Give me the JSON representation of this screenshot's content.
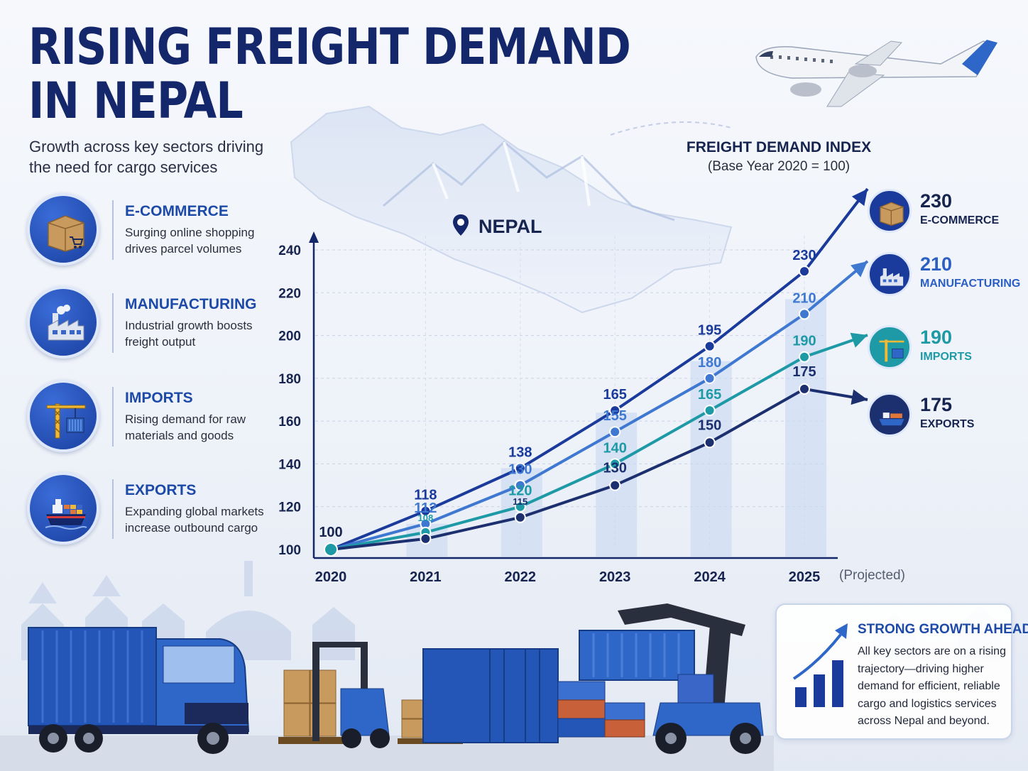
{
  "header": {
    "title_line1": "RISING FREIGHT DEMAND",
    "title_line2": "IN NEPAL",
    "subtitle": "Growth across key sectors driving the need for cargo services"
  },
  "sectors": [
    {
      "name": "E-COMMERCE",
      "description": "Surging online shopping drives parcel volumes",
      "icon": "parcel-box-icon"
    },
    {
      "name": "MANUFACTURING",
      "description": "Industrial growth boosts freight output",
      "icon": "factory-icon"
    },
    {
      "name": "IMPORTS",
      "description": "Rising demand for raw materials and goods",
      "icon": "crane-container-icon"
    },
    {
      "name": "EXPORTS",
      "description": "Expanding global markets increase outbound cargo",
      "icon": "cargo-ship-icon"
    }
  ],
  "map": {
    "label": "NEPAL",
    "icon": "location-pin-icon"
  },
  "chart_data": {
    "type": "line",
    "title": "FREIGHT DEMAND INDEX",
    "subtitle": "(Base Year 2020 = 100)",
    "x": [
      "2020",
      "2021",
      "2022",
      "2023",
      "2024",
      "2025"
    ],
    "x_note": "(Projected)",
    "ylim": [
      100,
      240
    ],
    "yticks": [
      100,
      120,
      140,
      160,
      180,
      200,
      220,
      240
    ],
    "grid": true,
    "series": [
      {
        "name": "E-COMMERCE",
        "values": [
          100,
          118,
          138,
          165,
          195,
          230
        ],
        "color": "#1a3a9c"
      },
      {
        "name": "MANUFACTURING",
        "values": [
          100,
          112,
          130,
          155,
          180,
          210
        ],
        "color": "#3f78d1"
      },
      {
        "name": "IMPORTS",
        "values": [
          100,
          108,
          120,
          140,
          165,
          190
        ],
        "color": "#1d9aa6"
      },
      {
        "name": "EXPORTS",
        "values": [
          100,
          105,
          115,
          130,
          150,
          175
        ],
        "color": "#1c2f6e"
      }
    ],
    "point_labels": {
      "2020": "100",
      "E-COMMERCE": [
        "118",
        "138",
        "165",
        "195",
        "230"
      ],
      "MANUFACTURING": [
        "112",
        "130",
        "155",
        "180",
        "210"
      ],
      "IMPORTS": [
        "108",
        "120",
        "140",
        "165",
        "190"
      ],
      "EXPORTS": [
        "115",
        "130",
        "150",
        "175"
      ]
    },
    "bars": {
      "categories": [
        "2021",
        "2022",
        "2023",
        "2024",
        "2025"
      ],
      "values": [
        112,
        138,
        164,
        188,
        217
      ]
    }
  },
  "end_labels": [
    {
      "value": "230",
      "label": "E-COMMERCE",
      "icon": "parcel-box-icon",
      "color": "#1a3a9c"
    },
    {
      "value": "210",
      "label": "MANUFACTURING",
      "icon": "factory-icon",
      "color": "#2b5fc4"
    },
    {
      "value": "190",
      "label": "IMPORTS",
      "icon": "crane-container-icon",
      "color": "#1d9aa6"
    },
    {
      "value": "175",
      "label": "EXPORTS",
      "icon": "cargo-ship-icon",
      "color": "#1c2f6e"
    }
  ],
  "growth_box": {
    "title": "STRONG GROWTH AHEAD",
    "text": "All key sectors are on a rising trajectory—driving higher demand for efficient, reliable cargo and logistics services across Nepal and beyond.",
    "icon": "growth-bars-arrow-icon"
  }
}
